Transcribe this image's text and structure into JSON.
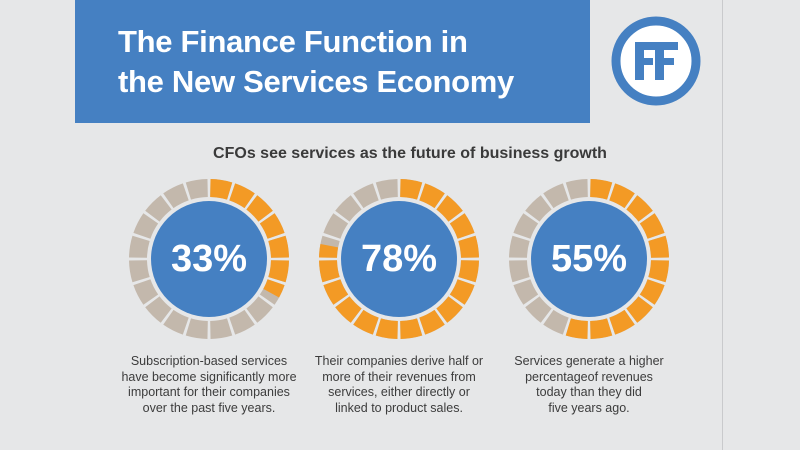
{
  "header": {
    "title_line1": "The Finance Function in",
    "title_line2": "the New Services Economy"
  },
  "colors": {
    "banner": "#4580c2",
    "circle": "#4580c2",
    "filled_segment": "#f39a25",
    "empty_segment": "#c3b8ac",
    "background": "#e6e7e8"
  },
  "chart_data": {
    "type": "pie",
    "title": "CFOs see services as the future of business growth",
    "items": [
      {
        "value": 33,
        "label": "33%",
        "caption": [
          "Subscription-based services",
          "have become significantly more",
          "important for their companies",
          "over the past five years."
        ]
      },
      {
        "value": 78,
        "label": "78%",
        "caption": [
          "Their companies derive half or",
          "more of their revenues from",
          "services, either directly or",
          "linked to product sales."
        ]
      },
      {
        "value": 55,
        "label": "55%",
        "caption": [
          "Services generate a higher",
          "percentageof revenues",
          "today than they did",
          "five years ago."
        ]
      }
    ]
  }
}
